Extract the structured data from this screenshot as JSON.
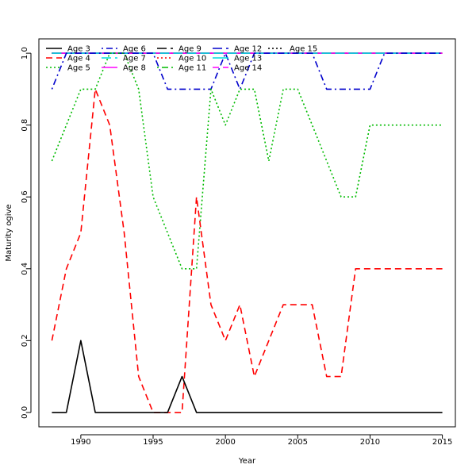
{
  "chart_data": {
    "type": "line",
    "title": "",
    "xlabel": "Year",
    "ylabel": "Maturity ogive",
    "xlim": [
      1987.1,
      2015.9
    ],
    "ylim": [
      -0.04,
      1.04
    ],
    "xticks": [
      1990,
      1995,
      2000,
      2005,
      2010,
      2015
    ],
    "yticks": [
      0.0,
      0.2,
      0.4,
      0.6,
      0.8,
      1.0
    ],
    "xtick_labels": [
      "1990",
      "1995",
      "2000",
      "2005",
      "2010",
      "2015"
    ],
    "ytick_labels": [
      "0.0",
      "0.2",
      "0.4",
      "0.6",
      "0.8",
      "1.0"
    ],
    "grid": false,
    "legend_position": "top-left",
    "x": [
      1988,
      1989,
      1990,
      1991,
      1992,
      1993,
      1994,
      1995,
      1996,
      1997,
      1998,
      1999,
      2000,
      2001,
      2002,
      2003,
      2004,
      2005,
      2006,
      2007,
      2008,
      2009,
      2010,
      2011,
      2012,
      2013,
      2014,
      2015
    ],
    "series": [
      {
        "name": "Age 3",
        "color": "#000000",
        "dash": "solid",
        "values": [
          0,
          0,
          0.2,
          0,
          0,
          0,
          0,
          0,
          0,
          0.1,
          0,
          0,
          0,
          0,
          0,
          0,
          0,
          0,
          0,
          0,
          0,
          0,
          0,
          0,
          0,
          0,
          0,
          0
        ]
      },
      {
        "name": "Age 4",
        "color": "#ff0000",
        "dash": "dashed",
        "values": [
          0.2,
          0.4,
          0.5,
          0.9,
          0.8,
          0.5,
          0.1,
          0,
          0,
          0,
          0.6,
          0.3,
          0.2,
          0.3,
          0.1,
          0.2,
          0.3,
          0.3,
          0.3,
          0.1,
          0.1,
          0.4,
          0.4,
          0.4,
          0.4,
          0.4,
          0.4,
          0.4
        ]
      },
      {
        "name": "Age 5",
        "color": "#00bb00",
        "dash": "dotted",
        "values": [
          0.7,
          0.8,
          0.9,
          0.9,
          1.0,
          1.0,
          0.9,
          0.6,
          0.5,
          0.4,
          0.4,
          0.9,
          0.8,
          0.9,
          0.9,
          0.7,
          0.9,
          0.9,
          0.8,
          0.7,
          0.6,
          0.6,
          0.8,
          0.8,
          0.8,
          0.8,
          0.8,
          0.8
        ]
      },
      {
        "name": "Age 6",
        "color": "#0000cc",
        "dash": "dotdash",
        "values": [
          0.9,
          1,
          1,
          1,
          1,
          1,
          1,
          1,
          0.9,
          0.9,
          0.9,
          0.9,
          1,
          0.9,
          1,
          1,
          1,
          1,
          1,
          0.9,
          0.9,
          0.9,
          0.9,
          1,
          1,
          1,
          1,
          1
        ]
      },
      {
        "name": "Age 7",
        "color": "#00dddd",
        "dash": "longdash",
        "values": [
          1,
          1,
          1,
          1,
          1,
          1,
          1,
          1,
          1,
          1,
          1,
          1,
          1,
          1,
          1,
          1,
          1,
          1,
          1,
          1,
          1,
          1,
          1,
          1,
          1,
          1,
          1,
          1
        ]
      },
      {
        "name": "Age 8",
        "color": "#ff00ff",
        "dash": "solid",
        "values": [
          1,
          1,
          1,
          1,
          1,
          1,
          1,
          1,
          1,
          1,
          1,
          1,
          1,
          1,
          1,
          1,
          1,
          1,
          1,
          1,
          1,
          1,
          1,
          1,
          1,
          1,
          1,
          1
        ]
      },
      {
        "name": "Age 9",
        "color": "#000000",
        "dash": "longdash",
        "values": [
          1,
          1,
          1,
          1,
          1,
          1,
          1,
          1,
          1,
          1,
          1,
          1,
          1,
          1,
          1,
          1,
          1,
          1,
          1,
          1,
          1,
          1,
          1,
          1,
          1,
          1,
          1,
          1
        ]
      },
      {
        "name": "Age 10",
        "color": "#ff0000",
        "dash": "dotted",
        "values": [
          1,
          1,
          1,
          1,
          1,
          1,
          1,
          1,
          1,
          1,
          1,
          1,
          1,
          1,
          1,
          1,
          1,
          1,
          1,
          1,
          1,
          1,
          1,
          1,
          1,
          1,
          1,
          1
        ]
      },
      {
        "name": "Age 11",
        "color": "#00bb00",
        "dash": "dotdash",
        "values": [
          1,
          1,
          1,
          1,
          1,
          1,
          1,
          1,
          1,
          1,
          1,
          1,
          1,
          1,
          1,
          1,
          1,
          1,
          1,
          1,
          1,
          1,
          1,
          1,
          1,
          1,
          1,
          1
        ]
      },
      {
        "name": "Age 12",
        "color": "#0000cc",
        "dash": "longdash",
        "values": [
          1,
          1,
          1,
          1,
          1,
          1,
          1,
          1,
          1,
          1,
          1,
          1,
          1,
          1,
          1,
          1,
          1,
          1,
          1,
          1,
          1,
          1,
          1,
          1,
          1,
          1,
          1,
          1
        ]
      },
      {
        "name": "Age 13",
        "color": "#00dddd",
        "dash": "solid",
        "values": [
          1,
          1,
          1,
          1,
          1,
          1,
          1,
          1,
          1,
          1,
          1,
          1,
          1,
          1,
          1,
          1,
          1,
          1,
          1,
          1,
          1,
          1,
          1,
          1,
          1,
          1,
          1,
          1
        ]
      },
      {
        "name": "Age 14",
        "color": "#ff00ff",
        "dash": "dashed",
        "values": [
          1,
          1,
          1,
          1,
          1,
          1,
          1,
          1,
          1,
          1,
          1,
          1,
          1,
          1,
          1,
          1,
          1,
          1,
          1,
          1,
          1,
          1,
          1,
          1,
          1,
          1,
          1,
          1
        ]
      },
      {
        "name": "Age 15",
        "color": "#000000",
        "dash": "dotted",
        "values": [
          1,
          1,
          1,
          1,
          1,
          1,
          1,
          1,
          1,
          1,
          1,
          1,
          1,
          1,
          1,
          1,
          1,
          1,
          1,
          1,
          1,
          1,
          1,
          1,
          1,
          1,
          1,
          1
        ]
      }
    ]
  }
}
